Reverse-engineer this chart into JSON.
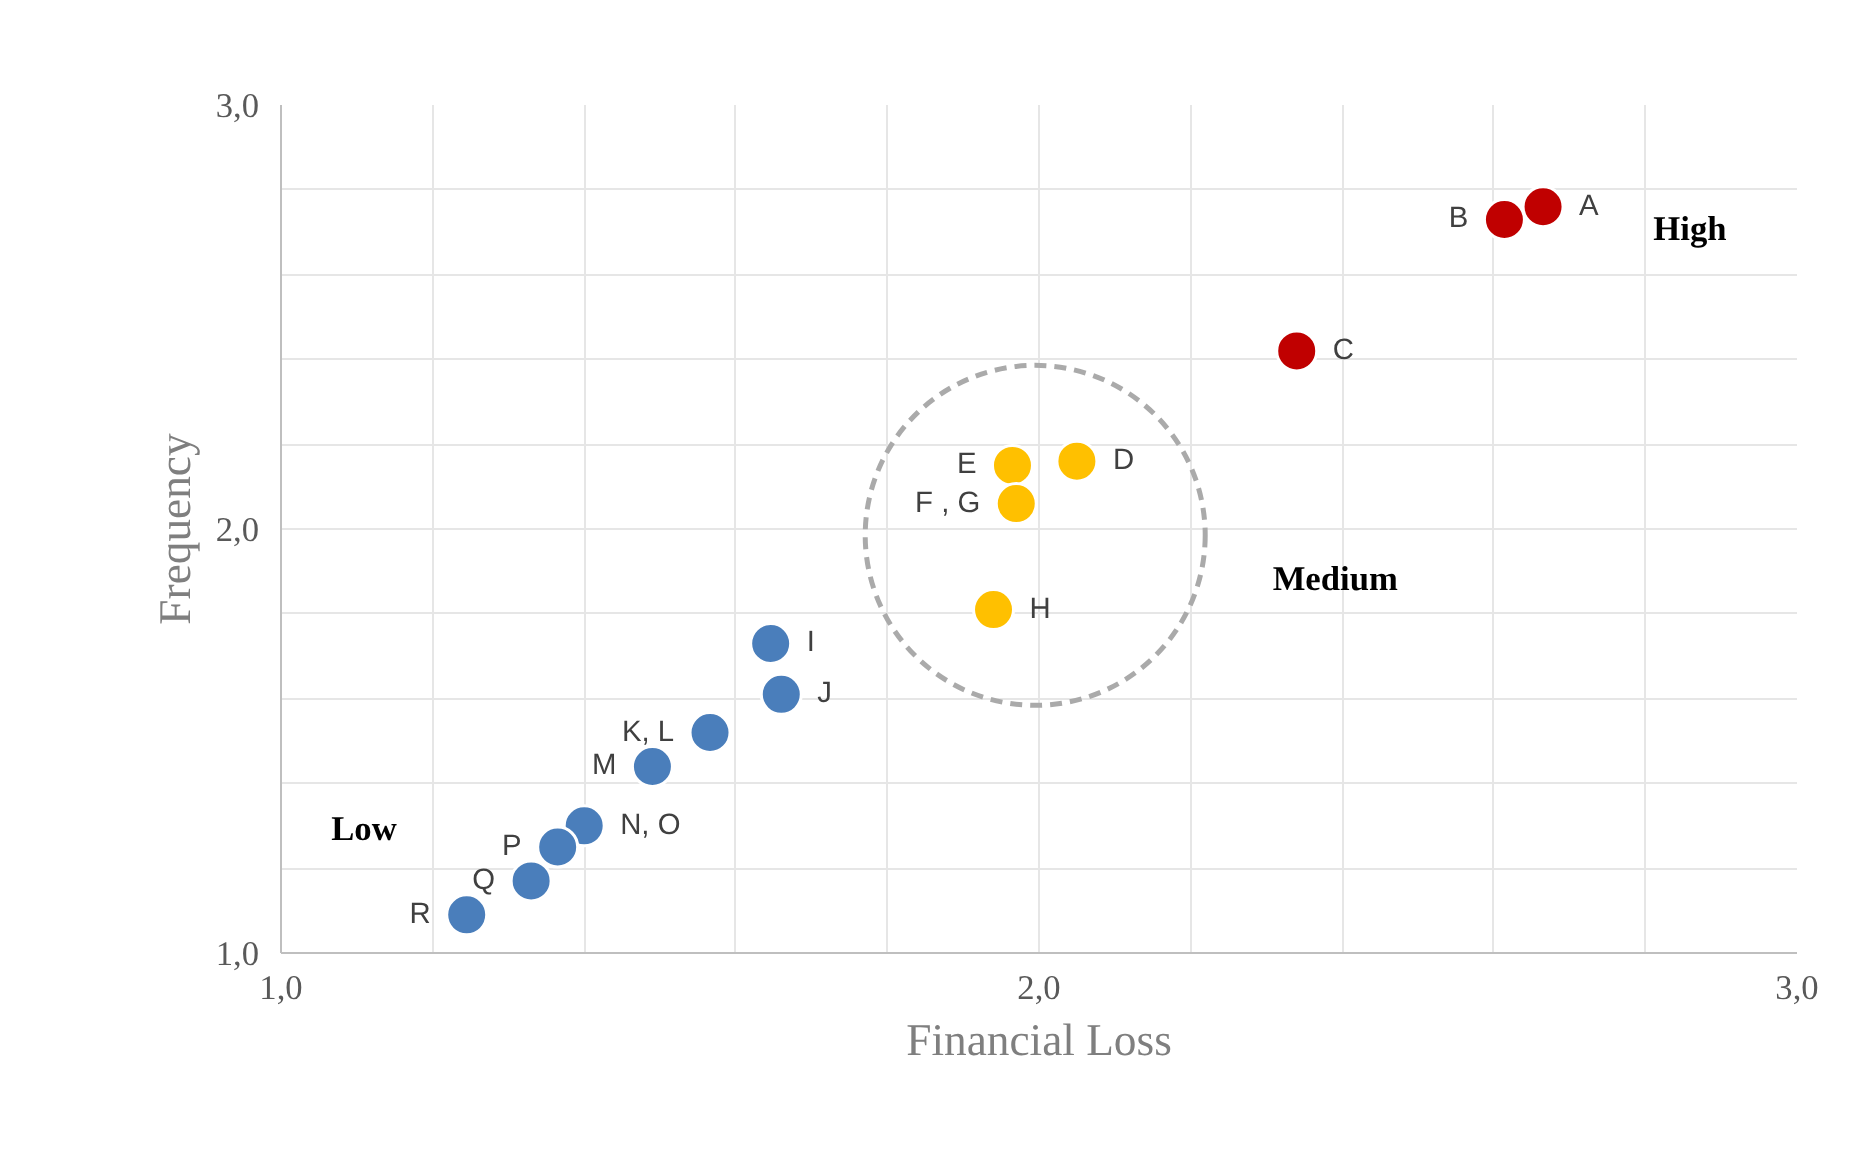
{
  "chart_data": {
    "type": "scatter",
    "xlabel": "Financial Loss",
    "ylabel": "Frequency",
    "series": [
      {
        "color": "#c00000",
        "x": [
          2.665,
          2.614,
          2.34
        ],
        "values": [
          2.76,
          2.73,
          2.42
        ]
      },
      {
        "color": "#ffc000",
        "x": [
          2.05,
          1.965,
          1.97,
          1.94
        ],
        "values": [
          2.16,
          2.15,
          2.06,
          1.81
        ]
      },
      {
        "color": "#4a7ebb",
        "x": [
          1.646,
          1.66,
          1.566,
          1.49,
          1.4,
          1.365,
          1.33,
          1.245
        ],
        "values": [
          1.73,
          1.61,
          1.52,
          1.44,
          1.3,
          1.25,
          1.17,
          1.09
        ]
      }
    ],
    "xlim": [
      1,
      3
    ],
    "ylim": [
      1,
      3
    ],
    "xticks": [
      {
        "value": 1,
        "label": "1,0"
      },
      {
        "value": 1.2,
        "label": null
      },
      {
        "value": 1.4,
        "label": null
      },
      {
        "value": 1.6,
        "label": null
      },
      {
        "value": 1.8,
        "label": null
      },
      {
        "value": 2,
        "label": "2,0"
      },
      {
        "value": 2.2,
        "label": null
      },
      {
        "value": 2.4,
        "label": null
      },
      {
        "value": 2.6,
        "label": null
      },
      {
        "value": 2.8,
        "label": null
      },
      {
        "value": 3,
        "label": "3,0"
      }
    ],
    "yticks": [
      {
        "value": 1,
        "label": "1,0"
      },
      {
        "value": 1.2,
        "label": null
      },
      {
        "value": 1.4,
        "label": null
      },
      {
        "value": 1.6,
        "label": null
      },
      {
        "value": 1.8,
        "label": null
      },
      {
        "value": 2,
        "label": "2,0"
      },
      {
        "value": 2.2,
        "label": null
      },
      {
        "value": 2.4,
        "label": null
      },
      {
        "value": 2.6,
        "label": null
      },
      {
        "value": 2.8,
        "label": null
      },
      {
        "value": 3,
        "label": "3,0"
      }
    ],
    "grid": true,
    "marker": "circle",
    "annotations": [
      {
        "text": "A",
        "x": 2.665,
        "y": 2.76
      },
      {
        "text": "B",
        "x": 2.614,
        "y": 2.73
      },
      {
        "text": "C",
        "x": 2.34,
        "y": 2.42
      },
      {
        "text": "D",
        "x": 2.05,
        "y": 2.16
      },
      {
        "text": "E",
        "x": 1.965,
        "y": 2.15
      },
      {
        "text": "F , G",
        "x": 1.97,
        "y": 2.06
      },
      {
        "text": "H",
        "x": 1.94,
        "y": 1.81
      },
      {
        "text": "I",
        "x": 1.646,
        "y": 1.73
      },
      {
        "text": "J",
        "x": 1.66,
        "y": 1.61
      },
      {
        "text": "K, L",
        "x": 1.566,
        "y": 1.52
      },
      {
        "text": "M",
        "x": 1.49,
        "y": 1.44
      },
      {
        "text": "N, O",
        "x": 1.4,
        "y": 1.3
      },
      {
        "text": "P",
        "x": 1.365,
        "y": 1.25
      },
      {
        "text": "Q",
        "x": 1.33,
        "y": 1.17
      },
      {
        "text": "R",
        "x": 1.245,
        "y": 1.09
      },
      "High",
      "Medium",
      "Low"
    ]
  }
}
